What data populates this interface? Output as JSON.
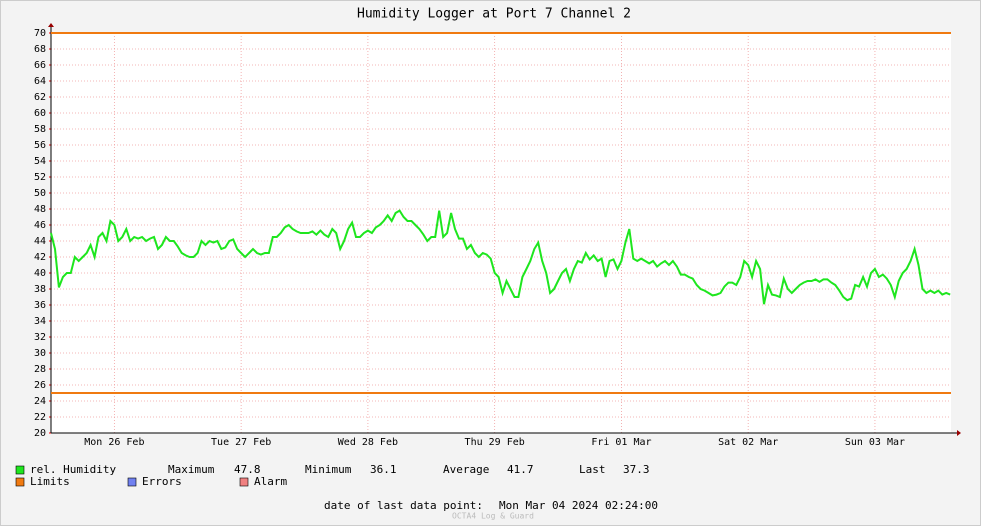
{
  "chart_data": {
    "type": "line",
    "title": "Humidity Logger at Port 7 Channel 2",
    "xlim": [
      0,
      170.4
    ],
    "xticks": [
      {
        "value": 12,
        "label": "Mon 26 Feb"
      },
      {
        "value": 36,
        "label": "Tue 27 Feb"
      },
      {
        "value": 60,
        "label": "Wed 28 Feb"
      },
      {
        "value": 84,
        "label": "Thu 29 Feb"
      },
      {
        "value": 108,
        "label": "Fri 01 Mar"
      },
      {
        "value": 132,
        "label": "Sat 02 Mar"
      },
      {
        "value": 156,
        "label": "Sun 03 Mar"
      }
    ],
    "ylim": [
      20,
      70
    ],
    "yticks": [
      20,
      22,
      24,
      26,
      28,
      30,
      32,
      34,
      36,
      38,
      40,
      42,
      44,
      46,
      48,
      50,
      52,
      54,
      56,
      58,
      60,
      62,
      64,
      66,
      68,
      70
    ],
    "grid": true,
    "x": [
      0,
      0.75,
      1.5,
      2.25,
      3,
      3.75,
      4.5,
      5.25,
      6,
      6.75,
      7.5,
      8.25,
      9,
      9.75,
      10.5,
      11.25,
      12,
      12.75,
      13.5,
      14.25,
      15,
      15.75,
      16.5,
      17.25,
      18,
      18.75,
      19.5,
      20.25,
      21,
      21.75,
      22.5,
      23.25,
      24,
      24.75,
      25.5,
      26.25,
      27,
      27.75,
      28.5,
      29.25,
      30,
      30.75,
      31.5,
      32.25,
      33,
      33.75,
      34.5,
      35.25,
      36,
      36.75,
      37.5,
      38.25,
      39,
      39.75,
      40.5,
      41.25,
      42,
      42.75,
      43.5,
      44.25,
      45,
      45.75,
      46.5,
      47.25,
      48,
      48.75,
      49.5,
      50.25,
      51,
      51.75,
      52.5,
      53.25,
      54,
      54.75,
      55.5,
      56.25,
      57,
      57.75,
      58.5,
      59.25,
      60,
      60.75,
      61.5,
      62.25,
      63,
      63.75,
      64.5,
      65.25,
      66,
      66.75,
      67.5,
      68.25,
      69,
      69.75,
      70.5,
      71.25,
      72,
      72.75,
      73.5,
      74.25,
      75,
      75.75,
      76.5,
      77.25,
      78,
      78.75,
      79.5,
      80.25,
      81,
      81.75,
      82.5,
      83.25,
      84,
      84.75,
      85.5,
      86.25,
      87,
      87.75,
      88.5,
      89.25,
      90,
      90.75,
      91.5,
      92.25,
      93,
      93.75,
      94.5,
      95.25,
      96,
      96.75,
      97.5,
      98.25,
      99,
      99.75,
      100.5,
      101.25,
      102,
      102.75,
      103.5,
      104.25,
      105,
      105.75,
      106.5,
      107.25,
      108,
      108.75,
      109.5,
      110.25,
      111,
      111.75,
      112.5,
      113.25,
      114,
      114.75,
      115.5,
      116.25,
      117,
      117.75,
      118.5,
      119.25,
      120,
      120.75,
      121.5,
      122.25,
      123,
      123.75,
      124.5,
      125.25,
      126,
      126.75,
      127.5,
      128.25,
      129,
      129.75,
      130.5,
      131.25,
      132,
      132.75,
      133.5,
      134.25,
      135,
      135.75,
      136.5,
      137.25,
      138,
      138.75,
      139.5,
      140.25,
      141,
      141.75,
      142.5,
      143.25,
      144,
      144.75,
      145.5,
      146.25,
      147,
      147.75,
      148.5,
      149.25,
      150,
      150.75,
      151.5,
      152.25,
      153,
      153.75,
      154.5,
      155.25,
      156,
      156.75,
      157.5,
      158.25,
      159,
      159.75,
      160.5,
      161.25,
      162,
      162.75,
      163.5,
      164.25,
      165,
      165.75,
      166.5,
      167.25,
      168,
      168.75,
      169.5,
      170.25
    ],
    "series": [
      {
        "name": "rel. Humidity",
        "color": "#1ee61e",
        "values": [
          45,
          43,
          38.2,
          39.5,
          40,
          40,
          42,
          41.5,
          42,
          42.5,
          43.5,
          42,
          44.5,
          45,
          44,
          46.5,
          46,
          44,
          44.5,
          45.5,
          44,
          44.5,
          44.3,
          44.5,
          44,
          44.3,
          44.5,
          43,
          43.5,
          44.5,
          44,
          44,
          43.3,
          42.5,
          42.2,
          42,
          42,
          42.5,
          44,
          43.5,
          44,
          43.8,
          44,
          43,
          43.2,
          44,
          44.2,
          43,
          42.5,
          42,
          42.5,
          43,
          42.5,
          42.3,
          42.5,
          42.5,
          44.5,
          44.5,
          45,
          45.7,
          46,
          45.5,
          45.2,
          45,
          45,
          45,
          45.2,
          44.8,
          45.3,
          44.8,
          44.5,
          45.5,
          45,
          43,
          44,
          45.5,
          46.3,
          44.5,
          44.5,
          45,
          45.3,
          45,
          45.7,
          46,
          46.5,
          47.2,
          46.5,
          47.5,
          47.8,
          47,
          46.5,
          46.5,
          46,
          45.5,
          44.8,
          44,
          44.5,
          44.5,
          47.8,
          44.5,
          45,
          47.5,
          45.5,
          44.3,
          44.3,
          43,
          43.5,
          42.5,
          42,
          42.5,
          42.3,
          41.8,
          40,
          39.5,
          37.5,
          39,
          38,
          37,
          37,
          39.5,
          40.5,
          41.5,
          43,
          43.8,
          41.5,
          40,
          37.5,
          38,
          39,
          40,
          40.5,
          39,
          40.5,
          41.5,
          41.3,
          42.5,
          41.7,
          42.2,
          41.5,
          41.8,
          39.5,
          41.5,
          41.7,
          40.5,
          41.5,
          43.8,
          45.5,
          41.8,
          41.5,
          41.8,
          41.5,
          41.2,
          41.5,
          40.8,
          41.2,
          41.5,
          41,
          41.5,
          40.8,
          39.8,
          39.8,
          39.5,
          39.3,
          38.5,
          38,
          37.8,
          37.5,
          37.2,
          37.3,
          37.5,
          38.3,
          38.8,
          38.8,
          38.5,
          39.5,
          41.5,
          41,
          39.5,
          41.5,
          40.5,
          36.1,
          38.5,
          37.3,
          37.2,
          37,
          39.3,
          38,
          37.5,
          38,
          38.5,
          38.8,
          39,
          39,
          39.2,
          38.9,
          39.2,
          39.2,
          38.8,
          38.5,
          37.8,
          37,
          36.6,
          36.8,
          38.5,
          38.3,
          39.5,
          38.3,
          40,
          40.5,
          39.5,
          39.8,
          39.3,
          38.5,
          37,
          39,
          40,
          40.5,
          41.5,
          43,
          41,
          38,
          37.5,
          37.8,
          37.5,
          37.8,
          37.3,
          37.5,
          37.3
        ]
      }
    ],
    "limits": {
      "name": "Limits",
      "color": "#f07a10",
      "values": [
        70,
        25
      ]
    },
    "legend_extra": [
      {
        "name": "Errors",
        "color": "#7080f0"
      },
      {
        "name": "Alarm",
        "color": "#f08080"
      }
    ],
    "stats": [
      {
        "label": "Maximum",
        "value": 47.8
      },
      {
        "label": "Minimum",
        "value": 36.1
      },
      {
        "label": "Average",
        "value": 41.7
      },
      {
        "label": "Last",
        "value": 37.3
      }
    ],
    "footer": {
      "label": "date of last data point:",
      "value": "Mon Mar 04 2024 02:24:00"
    },
    "watermark": "OCTA4 Log & Guard"
  }
}
